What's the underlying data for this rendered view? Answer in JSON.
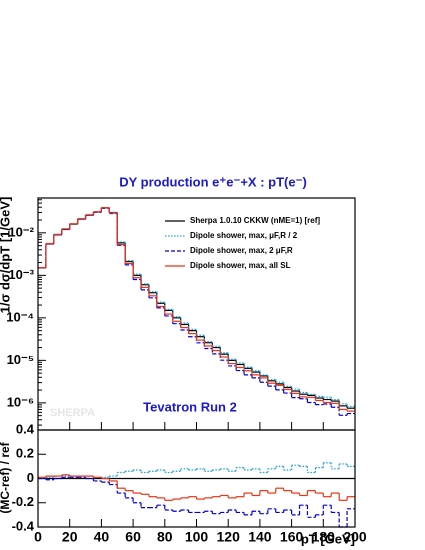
{
  "chart_data": [
    {
      "type": "histogram",
      "title": "DY production e⁺e⁻+X :  pT(e⁻)",
      "ylabel": "1/σ dσ/dpT [1/GeV]",
      "annotations": [
        "Tevatron Run 2",
        "SHERPA"
      ],
      "bins": [
        0,
        5,
        10,
        15,
        20,
        25,
        30,
        35,
        40,
        45,
        50,
        55,
        60,
        65,
        70,
        75,
        80,
        85,
        90,
        95,
        100,
        105,
        110,
        115,
        120,
        125,
        130,
        135,
        140,
        145,
        150,
        155,
        160,
        165,
        170,
        175,
        180,
        185,
        190,
        195,
        200
      ],
      "xlim": [
        0,
        200
      ],
      "ylim": [
        2.3e-07,
        0.066
      ],
      "log_y": true,
      "legend": "upper right",
      "yticks": [
        {
          "value": 1e-06,
          "label": "10⁻⁶"
        },
        {
          "value": 1e-05,
          "label": "10⁻⁵"
        },
        {
          "value": 0.0001,
          "label": "10⁻⁴"
        },
        {
          "value": 0.001,
          "label": "10⁻³"
        },
        {
          "value": 0.01,
          "label": "10⁻²"
        }
      ],
      "series": [
        {
          "name": "Sherpa 1.0.10 CKKW (nME=1) [ref]",
          "color": "#000000",
          "style": "solid",
          "values": [
            0.0015,
            0.0055,
            0.009,
            0.012,
            0.016,
            0.021,
            0.026,
            0.031,
            0.039,
            0.03,
            0.0058,
            0.0021,
            0.001,
            0.0006,
            0.00039,
            0.00022,
            0.00015,
            0.0001,
            7e-05,
            5e-05,
            3.6e-05,
            2.6e-05,
            2e-05,
            1.4e-05,
            1e-05,
            8e-06,
            6.5e-06,
            5.3e-06,
            4.3e-06,
            3.3e-06,
            2.8e-06,
            2.3e-06,
            1.9e-06,
            1.6e-06,
            1.5e-06,
            1.3e-06,
            1.2e-06,
            1.1e-06,
            8.5e-07,
            7.5e-07
          ]
        },
        {
          "name": "Dipole shower, max, μF,R / 2",
          "color": "#1aa3e0",
          "style": "dotted",
          "values": [
            0.0015,
            0.0056,
            0.0092,
            0.0122,
            0.0163,
            0.0214,
            0.0265,
            0.0313,
            0.0394,
            0.0306,
            0.0061,
            0.00223,
            0.00107,
            0.00063,
            0.000413,
            0.000235,
            0.000158,
            0.000106,
            7.56e-05,
            5.35e-05,
            3.89e-05,
            2.76e-05,
            2.14e-05,
            1.51e-05,
            1.06e-05,
            8.7e-06,
            6.96e-06,
            5.72e-06,
            4.52e-06,
            3.56e-06,
            3.08e-06,
            2.46e-06,
            2.11e-06,
            1.76e-06,
            1.58e-06,
            1.42e-06,
            1.36e-06,
            1.19e-06,
            9.5e-07,
            8.25e-07
          ]
        },
        {
          "name": "Dipole shower, max, 2 μF,R",
          "color": "#0000dd",
          "style": "dashed",
          "values": [
            0.0015,
            0.00545,
            0.009,
            0.0121,
            0.0162,
            0.0212,
            0.026,
            0.0304,
            0.0378,
            0.0285,
            0.0051,
            0.00176,
            0.0008,
            0.000456,
            0.000296,
            0.000172,
            0.000111,
            7.3e-05,
            5.18e-05,
            3.6e-05,
            2.59e-05,
            1.9e-05,
            1.42e-05,
            1.01e-05,
            7.4e-06,
            5.76e-06,
            4.55e-06,
            3.87e-06,
            3.05e-06,
            2.48e-06,
            2.02e-06,
            1.7e-06,
            1.33e-06,
            1.25e-06,
            1.02e-06,
            9.1e-07,
            9.4e-07,
            7.9e-07,
            5.1e-07,
            5.6e-07
          ]
        },
        {
          "name": "Dipole shower, max, all SL",
          "color": "#ee3311",
          "style": "solid",
          "values": [
            0.00152,
            0.0056,
            0.0092,
            0.0124,
            0.0163,
            0.0214,
            0.0265,
            0.0313,
            0.039,
            0.0294,
            0.0053,
            0.00189,
            0.00088,
            0.00052,
            0.00033,
            0.000185,
            0.000123,
            8.3e-05,
            5.9e-05,
            4.25e-05,
            2.99e-05,
            2.18e-05,
            1.7e-05,
            1.2e-05,
            8.4e-06,
            6.8e-06,
            5.7e-06,
            4.56e-06,
            3.87e-06,
            2.9e-06,
            2.58e-06,
            2.07e-06,
            1.67e-06,
            1.38e-06,
            1.35e-06,
            1.14e-06,
            1.02e-06,
            9.7e-07,
            7e-07,
            6.4e-07
          ]
        }
      ]
    },
    {
      "type": "histogram",
      "ylabel": "(MC-ref) / ref",
      "xlabel": "pT  [GeV]",
      "bins": [
        0,
        5,
        10,
        15,
        20,
        25,
        30,
        35,
        40,
        45,
        50,
        55,
        60,
        65,
        70,
        75,
        80,
        85,
        90,
        95,
        100,
        105,
        110,
        115,
        120,
        125,
        130,
        135,
        140,
        145,
        150,
        155,
        160,
        165,
        170,
        175,
        180,
        185,
        190,
        195,
        200
      ],
      "xlim": [
        0,
        200
      ],
      "ylim": [
        -0.4,
        0.4
      ],
      "xticks": [
        0,
        20,
        40,
        60,
        80,
        100,
        120,
        140,
        160,
        180,
        200
      ],
      "yticks": [
        -0.4,
        -0.2,
        0,
        0.2,
        0.4
      ],
      "series": [
        {
          "color": "#1aa3e0",
          "style": "dotted",
          "values": [
            0,
            0.01,
            0.02,
            0.02,
            0.02,
            0.02,
            0.02,
            0.01,
            0.01,
            0.02,
            0.05,
            0.06,
            0.07,
            0.05,
            0.06,
            0.07,
            0.05,
            0.06,
            0.08,
            0.07,
            0.08,
            0.06,
            0.07,
            0.08,
            0.06,
            0.09,
            0.07,
            0.08,
            0.05,
            0.08,
            0.1,
            0.07,
            0.11,
            0.1,
            0.05,
            0.09,
            0.13,
            0.08,
            0.12,
            0.1
          ]
        },
        {
          "color": "#0000dd",
          "style": "dashed",
          "values": [
            0,
            -0.01,
            0,
            0.01,
            0.01,
            0.01,
            0,
            -0.02,
            -0.03,
            -0.05,
            -0.12,
            -0.16,
            -0.2,
            -0.24,
            -0.24,
            -0.22,
            -0.26,
            -0.27,
            -0.26,
            -0.28,
            -0.28,
            -0.27,
            -0.29,
            -0.28,
            -0.26,
            -0.28,
            -0.3,
            -0.27,
            -0.29,
            -0.25,
            -0.28,
            -0.26,
            -0.3,
            -0.22,
            -0.32,
            -0.3,
            -0.22,
            -0.28,
            -0.4,
            -0.25
          ]
        },
        {
          "color": "#ee3311",
          "style": "solid",
          "values": [
            0.01,
            0.02,
            0.02,
            0.03,
            0.02,
            0.02,
            0.02,
            0.01,
            0,
            -0.02,
            -0.08,
            -0.1,
            -0.12,
            -0.13,
            -0.15,
            -0.16,
            -0.18,
            -0.17,
            -0.16,
            -0.15,
            -0.17,
            -0.16,
            -0.15,
            -0.14,
            -0.16,
            -0.15,
            -0.12,
            -0.14,
            -0.1,
            -0.12,
            -0.08,
            -0.1,
            -0.12,
            -0.14,
            -0.1,
            -0.12,
            -0.15,
            -0.12,
            -0.18,
            -0.15
          ]
        }
      ]
    }
  ]
}
